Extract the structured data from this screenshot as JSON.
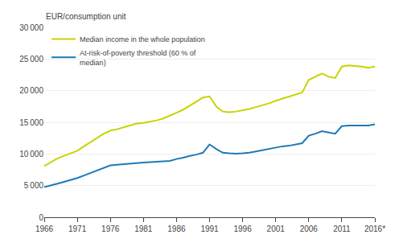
{
  "chart_data": {
    "type": "line",
    "ylabel": "EUR/consumption unit",
    "x": [
      1966,
      1967,
      1968,
      1969,
      1970,
      1971,
      1972,
      1973,
      1974,
      1975,
      1976,
      1977,
      1978,
      1979,
      1980,
      1981,
      1982,
      1983,
      1984,
      1985,
      1986,
      1987,
      1988,
      1989,
      1990,
      1991,
      1992,
      1993,
      1994,
      1995,
      1996,
      1997,
      1998,
      1999,
      2000,
      2001,
      2002,
      2003,
      2004,
      2005,
      2006,
      2007,
      2008,
      2009,
      2010,
      2011,
      2012,
      2013,
      2014,
      2015,
      2016
    ],
    "series": [
      {
        "name": "Median income in the whole population",
        "color": "#c8d400",
        "values": [
          8100,
          8700,
          9300,
          9700,
          10100,
          10500,
          11200,
          11900,
          12500,
          13200,
          13700,
          13900,
          14200,
          14500,
          14800,
          14900,
          15100,
          15300,
          15600,
          16000,
          16500,
          17000,
          17600,
          18200,
          18900,
          19100,
          17500,
          16700,
          16600,
          16700,
          16900,
          17100,
          17400,
          17700,
          18000,
          18400,
          18700,
          19000,
          19300,
          19700,
          21700,
          22200,
          22700,
          22200,
          22000,
          23800,
          24000,
          23900,
          23800,
          23600,
          23800
        ]
      },
      {
        "name": "At-risk-of-poverty threshold (60 % of\nmedian)",
        "color": "#1e7ab5",
        "values": [
          4750,
          5000,
          5300,
          5600,
          5900,
          6200,
          6600,
          7000,
          7400,
          7900,
          8200,
          8300,
          8400,
          8500,
          8600,
          8650,
          8700,
          8750,
          8800,
          8900,
          9200,
          9400,
          9700,
          9900,
          10200,
          11500,
          10800,
          10200,
          10100,
          10050,
          10100,
          10200,
          10400,
          10600,
          10800,
          11000,
          11200,
          11300,
          11500,
          11700,
          12900,
          13200,
          13600,
          13400,
          13200,
          14400,
          14500,
          14500,
          14500,
          14500,
          14700
        ]
      }
    ],
    "xlim": [
      1966,
      2016
    ],
    "xticks": [
      1966,
      1971,
      1976,
      1981,
      1986,
      1991,
      1996,
      2001,
      2006,
      2011,
      {
        "value": 2016,
        "label": "2016*"
      }
    ],
    "ylim": [
      0,
      30000
    ],
    "yticks": [
      0,
      {
        "value": 5000,
        "label": "5 000"
      },
      {
        "value": 10000,
        "label": "10 000"
      },
      {
        "value": 15000,
        "label": "15 000"
      },
      {
        "value": 20000,
        "label": "20 000"
      },
      {
        "value": 25000,
        "label": "25 000"
      },
      {
        "value": 30000,
        "label": "30 000"
      }
    ],
    "grid": true,
    "legend": "upper left"
  }
}
